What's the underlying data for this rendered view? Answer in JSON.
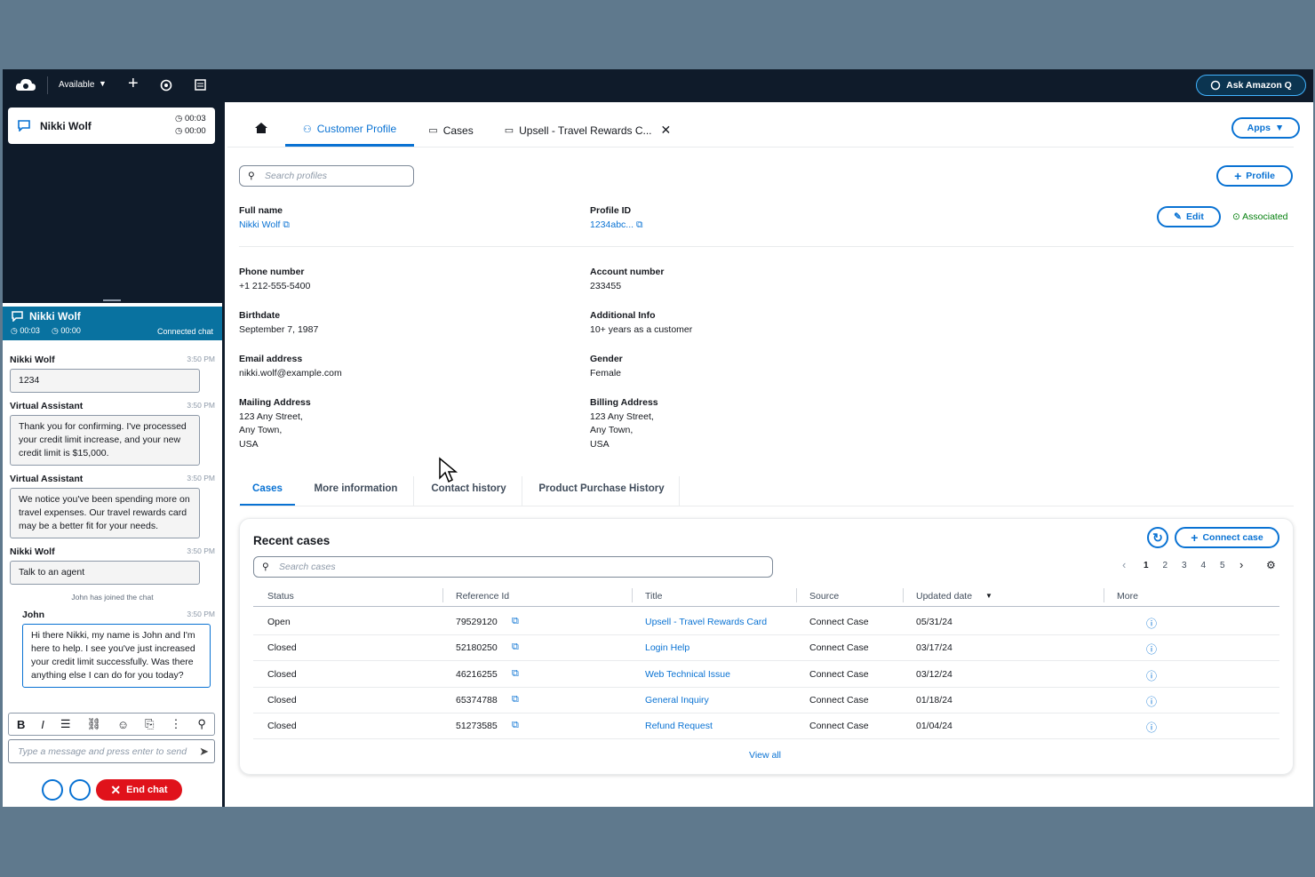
{
  "topbar": {
    "status": "Available",
    "ask_button": "Ask Amazon Q"
  },
  "contact_card": {
    "name": "Nikki Wolf",
    "timer_1": "00:03",
    "timer_2": "00:00"
  },
  "chat": {
    "header": {
      "name": "Nikki Wolf",
      "timer_1": "00:03",
      "timer_2": "00:00",
      "status": "Connected chat"
    },
    "messages": [
      {
        "sender": "Nikki Wolf",
        "time": "3:50 PM",
        "text": "1234"
      },
      {
        "sender": "Virtual Assistant",
        "time": "3:50 PM",
        "text": "Thank you for confirming. I've processed your credit limit increase, and your new credit limit is $15,000."
      },
      {
        "sender": "Virtual Assistant",
        "time": "3:50 PM",
        "text": "We notice you've been spending more on travel expenses. Our travel rewards card may be a better fit for your needs."
      },
      {
        "sender": "Nikki Wolf",
        "time": "3:50 PM",
        "text": "Talk to an agent"
      }
    ],
    "system_message": "John has joined the chat",
    "agent_message": {
      "sender": "John",
      "time": "3:50 PM",
      "text": "Hi there Nikki, my name is John and I'm here to help. I see you've just increased your credit limit successfully. Was there anything else I can do for you today?"
    },
    "input_placeholder": "Type a message and press enter to send",
    "end_chat": "End chat"
  },
  "tabs": [
    "Customer Profile",
    "Cases",
    "Upsell - Travel Rewards C..."
  ],
  "apps_button": "Apps",
  "search_profiles": "Search profiles",
  "profile_button": "Profile",
  "edit_button": "Edit",
  "associated": "Associated",
  "profile_fields": [
    {
      "label": "Full name",
      "lines": [
        "Nikki Wolf"
      ]
    },
    {
      "label": "Profile ID",
      "lines": [
        "1234abc..."
      ]
    },
    {
      "label": "Phone number",
      "lines": [
        "+1 212-555-5400"
      ]
    },
    {
      "label": "Account number",
      "lines": [
        "233455"
      ]
    },
    {
      "label": "Birthdate",
      "lines": [
        "September 7, 1987"
      ]
    },
    {
      "label": "Additional Info",
      "lines": [
        "10+ years as a customer"
      ]
    },
    {
      "label": "Email address",
      "lines": [
        "nikki.wolf@example.com"
      ]
    },
    {
      "label": "Gender",
      "lines": [
        "Female"
      ]
    },
    {
      "label": "Mailing Address",
      "lines": [
        "123 Any Street,",
        "Any Town,",
        "USA"
      ]
    },
    {
      "label": "Billing Address",
      "lines": [
        "123 Any Street,",
        "Any Town,",
        "USA"
      ]
    }
  ],
  "subtabs": [
    "Cases",
    "More information",
    "Contact history",
    "Product Purchase History"
  ],
  "recent_cases": {
    "title": "Recent cases",
    "connect_case": "Connect case",
    "search_placeholder": "Search cases",
    "pages": [
      1,
      2,
      3,
      4,
      5
    ],
    "columns": [
      "Status",
      "Reference Id",
      "Title",
      "Source",
      "Updated date",
      "More"
    ],
    "rows": [
      [
        "Open",
        "79529120",
        "Upsell - Travel Rewards Card",
        "Connect Case",
        "05/31/24"
      ],
      [
        "Closed",
        "52180250",
        "Login Help",
        "Connect Case",
        "03/17/24"
      ],
      [
        "Closed",
        "46216255",
        "Web Technical Issue",
        "Connect Case",
        "03/12/24"
      ],
      [
        "Closed",
        "65374788",
        "General Inquiry",
        "Connect Case",
        "01/18/24"
      ],
      [
        "Closed",
        "51273585",
        "Refund Request",
        "Connect Case",
        "01/04/24"
      ]
    ],
    "view_all": "View all"
  }
}
